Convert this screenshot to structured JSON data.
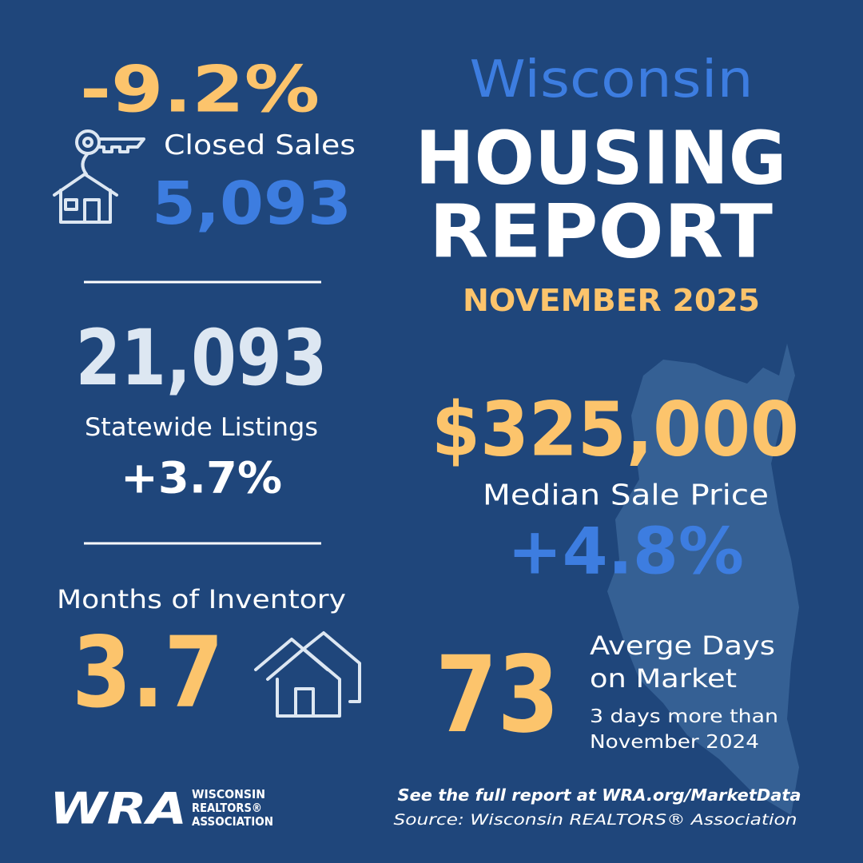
{
  "header": {
    "state": "Wisconsin",
    "line1": "HOUSING",
    "line2": "REPORT",
    "period": "NOVEMBER 2025"
  },
  "closed_sales": {
    "change": "-9.2%",
    "label": "Closed Sales",
    "value": "5,093"
  },
  "listings": {
    "value": "21,093",
    "label": "Statewide Listings",
    "change": "+3.7%"
  },
  "inventory": {
    "label": "Months of Inventory",
    "value": "3.7"
  },
  "median_price": {
    "value": "$325,000",
    "label": "Median Sale Price",
    "change": "+4.8%"
  },
  "days_on_market": {
    "value": "73",
    "label": [
      "Averge Days",
      "on Market"
    ],
    "note": [
      "3 days more than",
      "November 2024"
    ]
  },
  "footer": {
    "link": "See the full report at WRA.org/MarketData",
    "source": "Source: Wisconsin REALTORS® Association"
  },
  "logo": {
    "mark": "WRA",
    "lines": [
      "WISCONSIN",
      "REALTORS®",
      "ASSOCIATION"
    ]
  }
}
